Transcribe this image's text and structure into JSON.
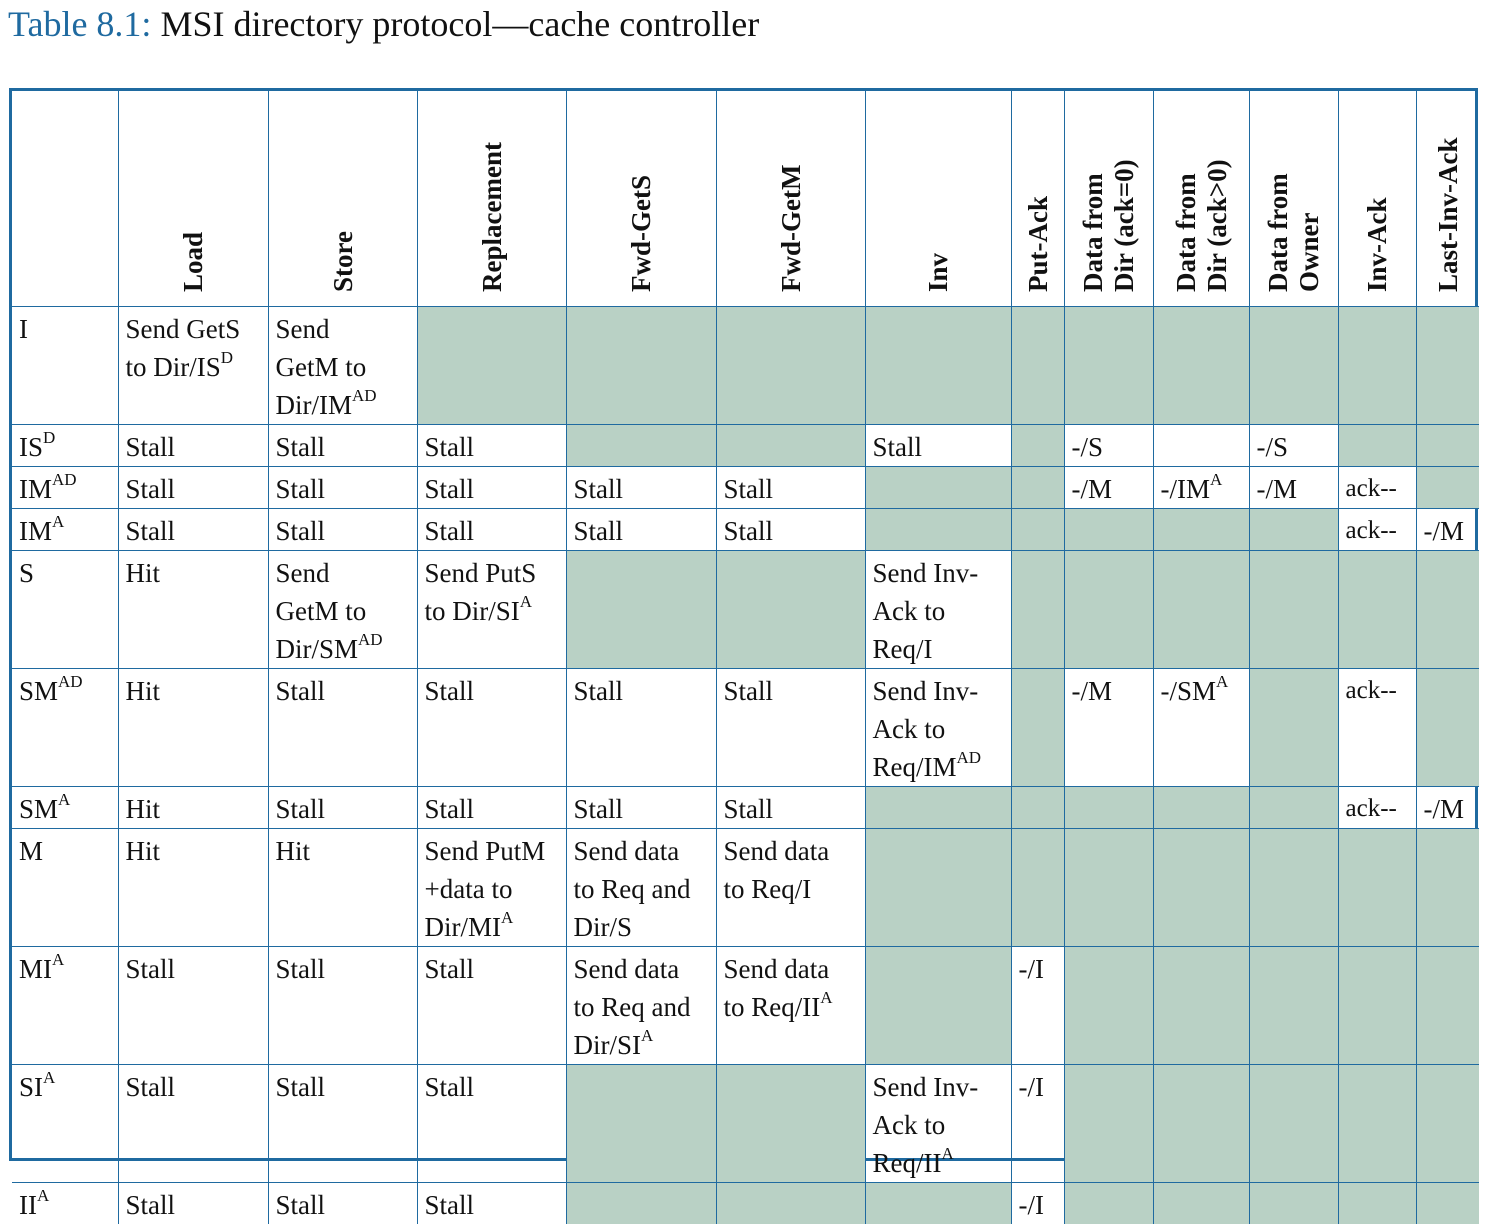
{
  "caption": {
    "label": "Table 8.1:",
    "title": "MSI directory protocol—cache controller"
  },
  "headers": {
    "load": "Load",
    "store": "Store",
    "replacement": "Replacement",
    "fwd_gets": "Fwd-GetS",
    "fwd_getm": "Fwd-GetM",
    "inv": "Inv",
    "put_ack": "Put-Ack",
    "data_dir_ack0_l1": "Data from",
    "data_dir_ack0_l2": "Dir (ack=0)",
    "data_dir_ackgt0_l1": "Data from",
    "data_dir_ackgt0_l2": "Dir (ack>0)",
    "data_owner_l1": "Data from",
    "data_owner_l2": "Owner",
    "inv_ack": "Inv-Ack",
    "last_inv_ack": "Last-Inv-Ack"
  },
  "colors": {
    "border": "#1f6aa0",
    "shade": "#b9d1c5",
    "caption_label": "#1f6aa0"
  },
  "rows": {
    "I": {
      "state": "I",
      "load": [
        "Send GetS",
        "to Dir/IS",
        "D"
      ],
      "store": [
        "Send",
        "GetM to",
        "Dir/IM",
        "AD"
      ]
    },
    "ISD": {
      "state": "IS",
      "state_sup": "D",
      "load": "Stall",
      "store": "Stall",
      "replacement": "Stall",
      "inv": "Stall",
      "data_dir_ack0": "-/S",
      "data_owner": "-/S"
    },
    "IMAD": {
      "state": "IM",
      "state_sup": "AD",
      "load": "Stall",
      "store": "Stall",
      "replacement": "Stall",
      "fwd_gets": "Stall",
      "fwd_getm": "Stall",
      "data_dir_ack0": "-/M",
      "data_dir_ackgt0": "-/IM",
      "data_dir_ackgt0_sup": "A",
      "data_owner": "-/M",
      "inv_ack": "ack--"
    },
    "IMA": {
      "state": "IM",
      "state_sup": "A",
      "load": "Stall",
      "store": "Stall",
      "replacement": "Stall",
      "fwd_gets": "Stall",
      "fwd_getm": "Stall",
      "inv_ack": "ack--",
      "last_inv_ack": "-/M"
    },
    "S": {
      "state": "S",
      "load": "Hit",
      "store": [
        "Send",
        "GetM to",
        "Dir/SM",
        "AD"
      ],
      "replacement": [
        "Send PutS",
        "to Dir/SI",
        "A"
      ],
      "inv": [
        "Send Inv-",
        "Ack to",
        "Req/I"
      ]
    },
    "SMAD": {
      "state": "SM",
      "state_sup": "AD",
      "load": "Hit",
      "store": "Stall",
      "replacement": "Stall",
      "fwd_gets": "Stall",
      "fwd_getm": "Stall",
      "inv": [
        "Send Inv-",
        "Ack to",
        "Req/IM",
        "AD"
      ],
      "data_dir_ack0": "-/M",
      "data_dir_ackgt0": "-/SM",
      "data_dir_ackgt0_sup": "A",
      "inv_ack": "ack--"
    },
    "SMA": {
      "state": "SM",
      "state_sup": "A",
      "load": "Hit",
      "store": "Stall",
      "replacement": "Stall",
      "fwd_gets": "Stall",
      "fwd_getm": "Stall",
      "inv_ack": "ack--",
      "last_inv_ack": "-/M"
    },
    "M": {
      "state": "M",
      "load": "Hit",
      "store": "Hit",
      "replacement": [
        "Send PutM",
        "+data to",
        "Dir/MI",
        "A"
      ],
      "fwd_gets": [
        "Send data",
        "to Req and",
        "Dir/S"
      ],
      "fwd_getm": [
        "Send data",
        "to Req/I"
      ]
    },
    "MIA": {
      "state": "MI",
      "state_sup": "A",
      "load": "Stall",
      "store": "Stall",
      "replacement": "Stall",
      "fwd_gets": [
        "Send data",
        "to Req and",
        "Dir/SI",
        "A"
      ],
      "fwd_getm": [
        "Send data",
        "to Req/II",
        "A"
      ],
      "put_ack": "-/I"
    },
    "SIA": {
      "state": "SI",
      "state_sup": "A",
      "load": "Stall",
      "store": "Stall",
      "replacement": "Stall",
      "inv": [
        "Send Inv-",
        "Ack to",
        "Req/II",
        "A"
      ],
      "put_ack": "-/I"
    },
    "IIA": {
      "state": "II",
      "state_sup": "A",
      "load": "Stall",
      "store": "Stall",
      "replacement": "Stall",
      "put_ack": "-/I"
    }
  }
}
